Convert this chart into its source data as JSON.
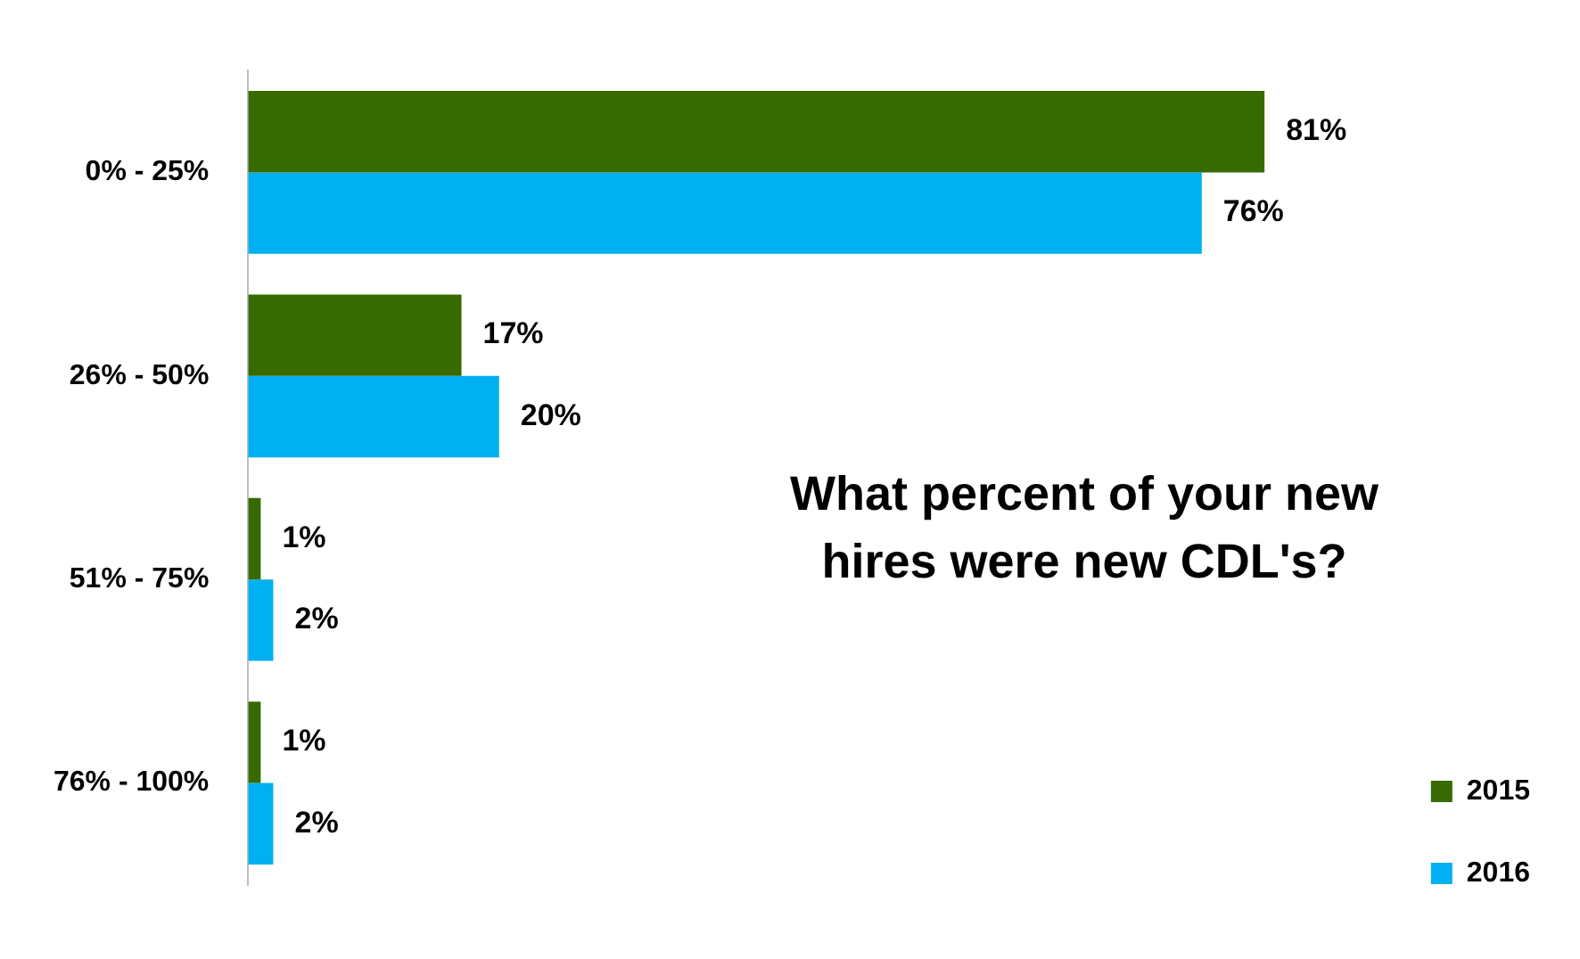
{
  "chart_data": {
    "type": "bar",
    "orientation": "horizontal",
    "title": "What percent of your new hires were new CDL's?",
    "categories": [
      "0% - 25%",
      "26% - 50%",
      "51% - 75%",
      "76% - 100%"
    ],
    "series": [
      {
        "name": "2015",
        "color": "#376a00",
        "values": [
          81,
          17,
          1,
          1
        ],
        "value_labels": [
          "81%",
          "17%",
          "1%",
          "1%"
        ]
      },
      {
        "name": "2016",
        "color": "#00b0f0",
        "values": [
          76,
          20,
          2,
          2
        ],
        "value_labels": [
          "76%",
          "20%",
          "2%",
          "2%"
        ]
      }
    ],
    "grid": false,
    "legend": "bottom right"
  }
}
